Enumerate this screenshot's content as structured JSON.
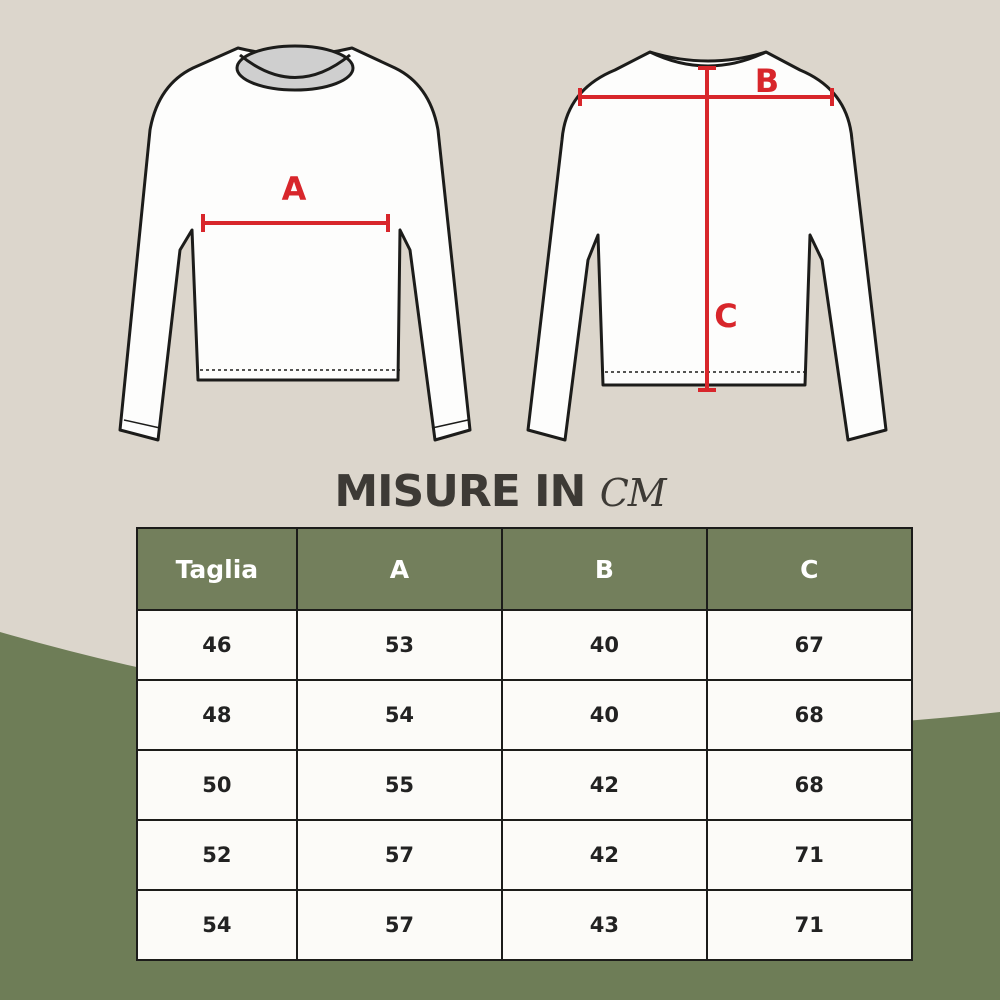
{
  "colors": {
    "background": "#dcd6cc",
    "accent_green": "#737f5c",
    "measure_red": "#d8262b",
    "title": "#3d3a35"
  },
  "diagram": {
    "front_label": "A",
    "back_label_width": "B",
    "back_label_length": "C"
  },
  "title": {
    "main": "MISURE IN",
    "unit": "CM"
  },
  "table": {
    "headers": [
      "Taglia",
      "A",
      "B",
      "C"
    ],
    "rows": [
      [
        "46",
        "53",
        "40",
        "67"
      ],
      [
        "48",
        "54",
        "40",
        "68"
      ],
      [
        "50",
        "55",
        "42",
        "68"
      ],
      [
        "52",
        "57",
        "42",
        "71"
      ],
      [
        "54",
        "57",
        "43",
        "71"
      ]
    ]
  }
}
